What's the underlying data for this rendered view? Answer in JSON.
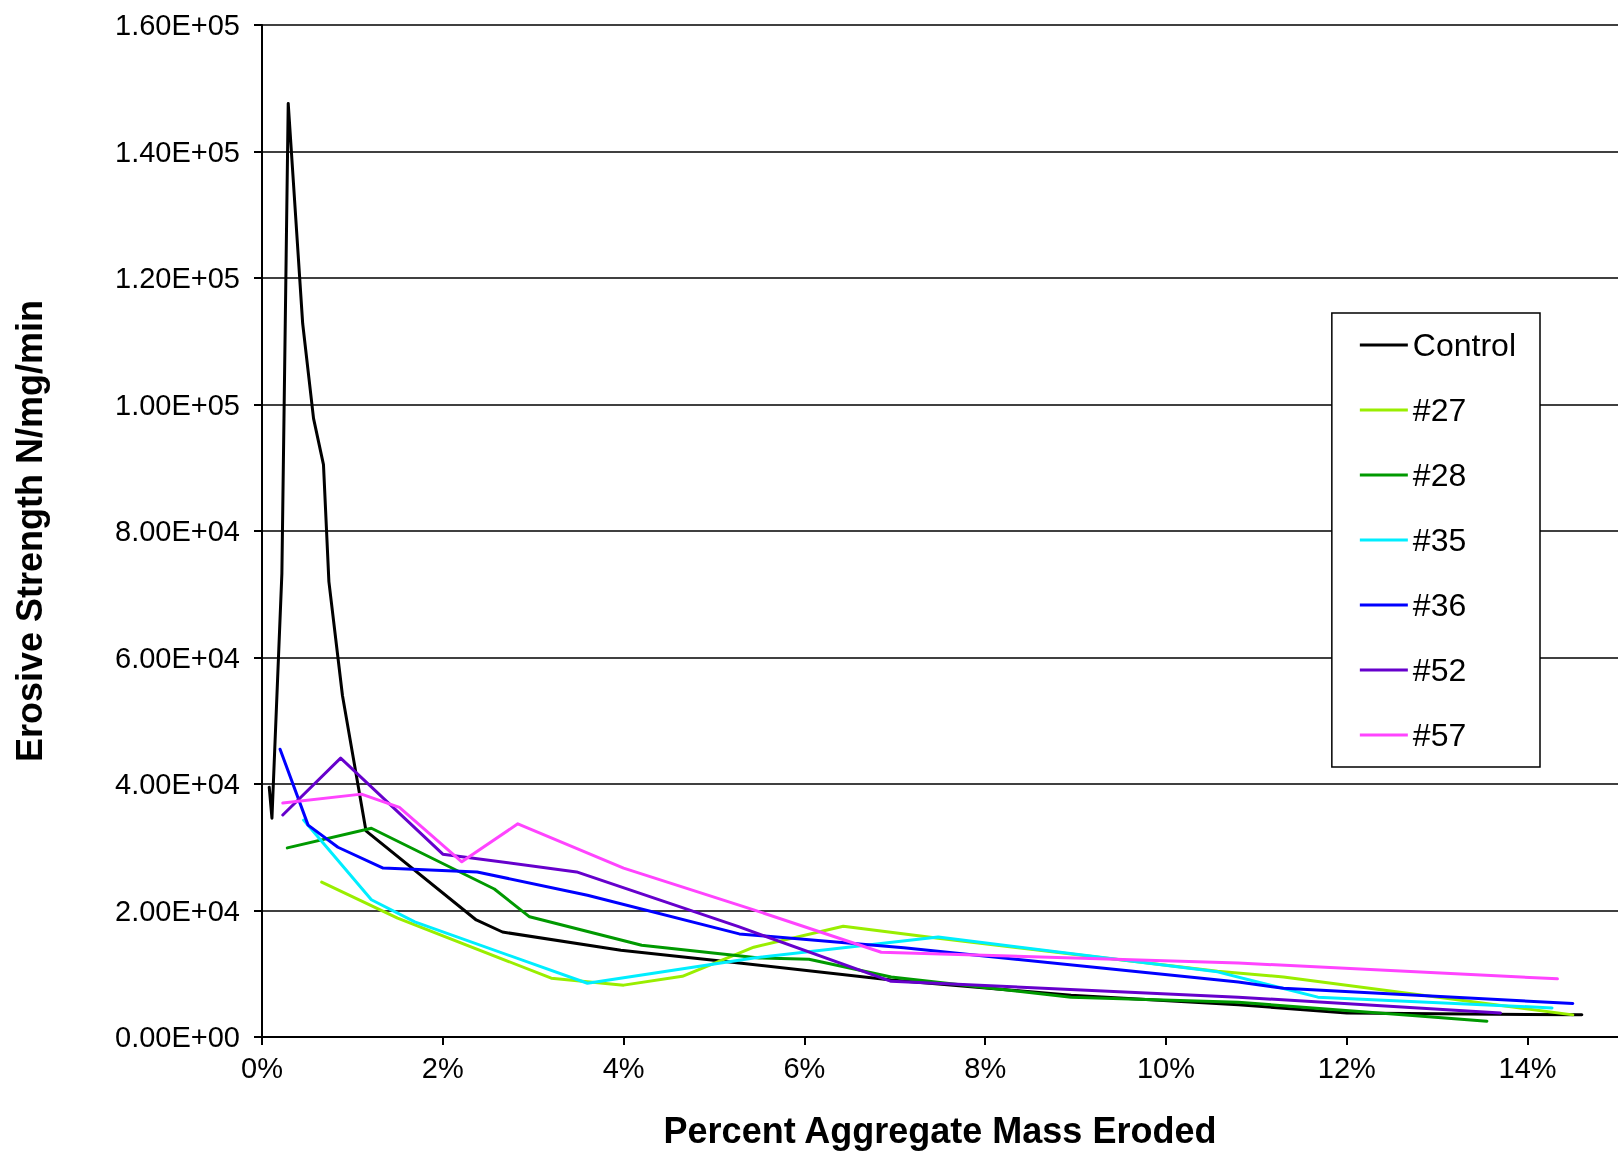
{
  "chart_data": {
    "type": "line",
    "xlabel": "Percent Aggregate Mass Eroded",
    "ylabel": "Erosive Strength N/mg/min",
    "xlim": [
      0,
      15
    ],
    "xticks": [
      {
        "value": 0,
        "label": "0%"
      },
      {
        "value": 2,
        "label": "2%"
      },
      {
        "value": 4,
        "label": "4%"
      },
      {
        "value": 6,
        "label": "6%"
      },
      {
        "value": 8,
        "label": "8%"
      },
      {
        "value": 10,
        "label": "10%"
      },
      {
        "value": 12,
        "label": "12%"
      },
      {
        "value": 14,
        "label": "14%"
      }
    ],
    "ylim": [
      0,
      160000
    ],
    "yticks": [
      {
        "value": 0,
        "label": "0.00E+00"
      },
      {
        "value": 20000,
        "label": "2.00E+04"
      },
      {
        "value": 40000,
        "label": "4.00E+04"
      },
      {
        "value": 60000,
        "label": "6.00E+04"
      },
      {
        "value": 80000,
        "label": "8.00E+04"
      },
      {
        "value": 100000,
        "label": "1.00E+05"
      },
      {
        "value": 120000,
        "label": "1.20E+05"
      },
      {
        "value": 140000,
        "label": "1.40E+05"
      },
      {
        "value": 160000,
        "label": "1.60E+05"
      }
    ],
    "grid": "y",
    "legend": "right",
    "marker": "none",
    "line_style": "solid",
    "series": [
      {
        "name": "Control",
        "color": "#000000",
        "x": [
          0.08,
          0.11,
          0.22,
          0.29,
          0.45,
          0.57,
          0.68,
          0.74,
          0.89,
          1.15,
          2.37,
          2.66,
          3.97,
          5.28,
          6.96,
          8.95,
          10.8,
          12.0,
          14.6
        ],
        "values": [
          39500,
          34600,
          73300,
          147600,
          112800,
          97800,
          90500,
          72000,
          54000,
          32600,
          18500,
          16600,
          13700,
          11700,
          9000,
          6600,
          5100,
          3800,
          3500
        ]
      },
      {
        "name": "#27",
        "color": "#99ee00",
        "x": [
          0.66,
          1.5,
          3.2,
          4.0,
          4.65,
          5.44,
          6.43,
          7.48,
          10.57,
          11.3,
          14.5
        ],
        "values": [
          24500,
          18800,
          9300,
          8200,
          9600,
          14200,
          17500,
          15600,
          10400,
          9500,
          3500
        ]
      },
      {
        "name": "#28",
        "color": "#009900",
        "x": [
          0.28,
          1.21,
          2.57,
          2.96,
          4.2,
          5.5,
          6.05,
          6.96,
          8.95,
          10.8,
          13.55
        ],
        "values": [
          29900,
          33000,
          23400,
          19000,
          14500,
          12500,
          12300,
          9500,
          6300,
          5500,
          2500
        ]
      },
      {
        "name": "#35",
        "color": "#00eeff",
        "x": [
          0.46,
          1.21,
          1.69,
          3.6,
          5.44,
          7.48,
          10.57,
          11.68,
          14.27
        ],
        "values": [
          34300,
          21700,
          18200,
          8500,
          12500,
          15800,
          10300,
          6300,
          4600
        ]
      },
      {
        "name": "#36",
        "color": "#0000ff",
        "x": [
          0.2,
          0.51,
          0.84,
          1.34,
          2.38,
          3.6,
          5.28,
          7.1,
          10.8,
          11.3,
          14.5
        ],
        "values": [
          45500,
          33500,
          30000,
          26700,
          26100,
          22400,
          16300,
          14100,
          8700,
          7700,
          5300
        ]
      },
      {
        "name": "#52",
        "color": "#6600cc",
        "x": [
          0.23,
          0.87,
          2.0,
          3.48,
          5.28,
          6.96,
          10.8,
          13.7
        ],
        "values": [
          35100,
          44100,
          28900,
          26100,
          17400,
          8800,
          6300,
          3800
        ]
      },
      {
        "name": "#57",
        "color": "#ff44ff",
        "x": [
          0.23,
          1.1,
          1.52,
          2.21,
          2.83,
          4.0,
          5.44,
          6.85,
          10.8,
          14.33
        ],
        "values": [
          37000,
          38400,
          36300,
          27700,
          33700,
          26700,
          20100,
          13400,
          11700,
          9200
        ]
      }
    ]
  }
}
